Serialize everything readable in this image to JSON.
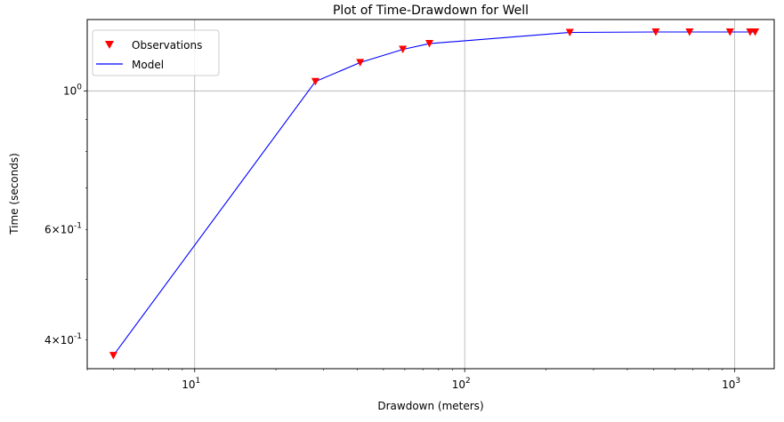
{
  "chart_data": {
    "type": "line",
    "title": "Plot of Time-Drawdown for Well",
    "xlabel": "Drawdown (meters)",
    "ylabel": "Time (seconds)",
    "xscale": "log",
    "yscale": "log",
    "xlim": [
      4,
      1400
    ],
    "ylim": [
      0.36,
      1.3
    ],
    "grid": true,
    "legend": "top-left",
    "x_tick_labels": [
      "10^1",
      "10^2",
      "10^3"
    ],
    "y_tick_labels": [
      "4 × 10^-1",
      "6 × 10^-1",
      "10^0"
    ],
    "series": [
      {
        "name": "Observations",
        "style": "markers",
        "marker": "triangle-down",
        "color": "#ff0000",
        "x": [
          5,
          28,
          41,
          59,
          74,
          245,
          510,
          680,
          960,
          1140,
          1190
        ],
        "y": [
          0.378,
          1.035,
          1.11,
          1.165,
          1.19,
          1.24,
          1.242,
          1.242,
          1.242,
          1.242,
          1.242
        ]
      },
      {
        "name": "Model",
        "style": "line",
        "color": "#0000ff",
        "x": [
          5,
          28,
          41,
          59,
          74,
          245,
          510,
          680,
          960,
          1140,
          1190
        ],
        "y": [
          0.378,
          1.035,
          1.11,
          1.165,
          1.19,
          1.24,
          1.242,
          1.242,
          1.242,
          1.242,
          1.242
        ]
      }
    ]
  }
}
